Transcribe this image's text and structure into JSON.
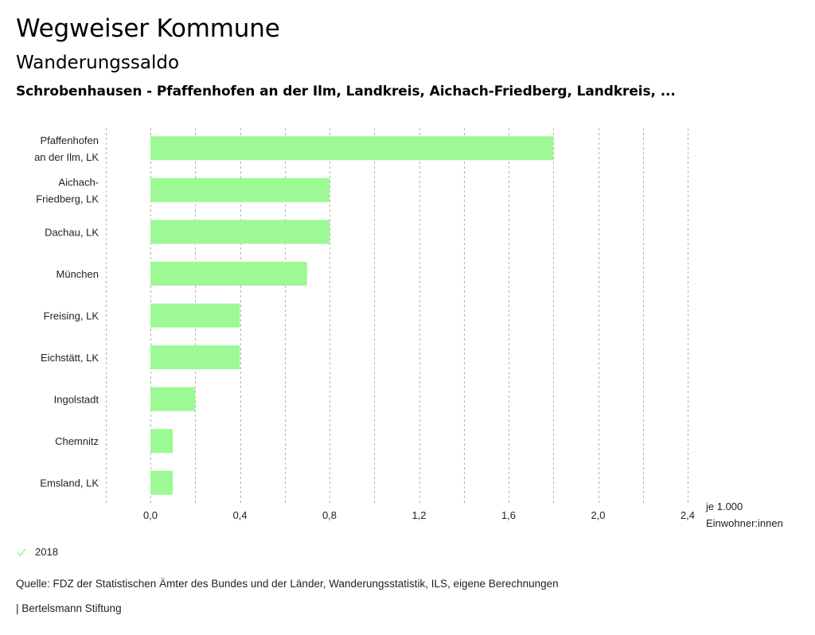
{
  "header": {
    "title": "Wegweiser Kommune",
    "subtitle": "Wanderungssaldo",
    "regions": "Schrobenhausen - Pfaffenhofen an der Ilm, Landkreis, Aichach-Friedberg, Landkreis, ..."
  },
  "colors": {
    "bar": "#9cf994",
    "grid": "#b3b3b3",
    "legend_check": "#9cf994"
  },
  "chart_data": {
    "type": "bar",
    "orientation": "horizontal",
    "categories": [
      [
        "Pfaffenhofen",
        "an der Ilm, LK"
      ],
      [
        "Aichach-",
        "Friedberg, LK"
      ],
      [
        "Dachau, LK"
      ],
      [
        "München"
      ],
      [
        "Freising, LK"
      ],
      [
        "Eichstätt, LK"
      ],
      [
        "Ingolstadt"
      ],
      [
        "Chemnitz"
      ],
      [
        "Emsland, LK"
      ]
    ],
    "series": [
      {
        "name": "2018",
        "values": [
          1.8,
          0.8,
          0.8,
          0.7,
          0.4,
          0.4,
          0.2,
          0.1,
          0.1
        ]
      }
    ],
    "xlim": [
      -0.2,
      2.4
    ],
    "xticks": [
      0.0,
      0.4,
      0.8,
      1.2,
      1.6,
      2.0,
      2.4
    ],
    "xtick_labels": [
      "0,0",
      "0,4",
      "0,8",
      "1,2",
      "1,6",
      "2,0",
      "2,4"
    ],
    "grid_step": 0.2,
    "grid": true,
    "xlabel": [
      "je 1.000",
      "Einwohner:innen"
    ],
    "legend": {
      "position": "bottom-left",
      "entries": [
        "2018"
      ]
    }
  },
  "footer": {
    "source": "Quelle: FDZ der Statistischen Ämter des Bundes und der Länder, Wanderungsstatistik, ILS, eigene Berechnungen",
    "credit": "| Bertelsmann Stiftung"
  }
}
